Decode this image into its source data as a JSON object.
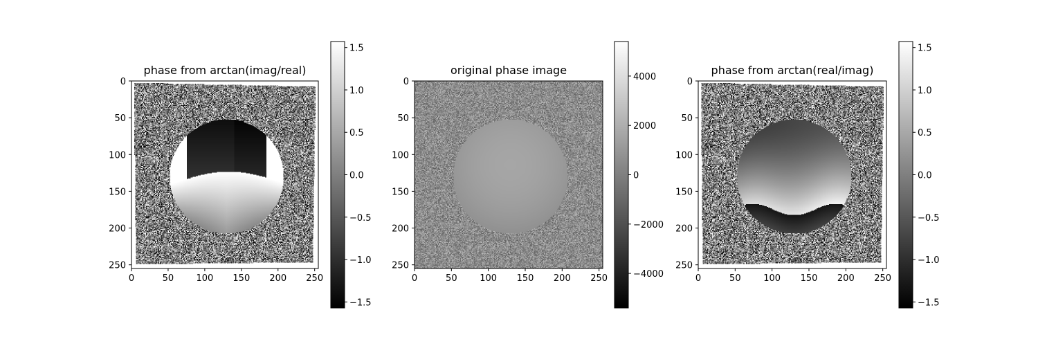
{
  "chart_data": [
    {
      "type": "heatmap",
      "title": "phase from arctan(imag/real)",
      "colormap": "gray",
      "xlim": [
        0,
        255
      ],
      "ylim": [
        255,
        0
      ],
      "x_ticks": [
        0,
        50,
        100,
        150,
        200,
        250
      ],
      "y_ticks": [
        0,
        50,
        100,
        150,
        200,
        250
      ],
      "x_tick_labels": [
        "0",
        "50",
        "100",
        "150",
        "200",
        "250"
      ],
      "y_tick_labels": [
        "0",
        "50",
        "100",
        "150",
        "200",
        "250"
      ],
      "colorbar": {
        "range": [
          -1.5708,
          1.5708
        ],
        "ticks": [
          1.5,
          1.0,
          0.5,
          0.0,
          -0.5,
          -1.0,
          -1.5
        ],
        "tick_labels": [
          "1.5",
          "1.0",
          "0.5",
          "0.0",
          "−0.5",
          "−1.0",
          "−1.5"
        ]
      },
      "content": "arctan-imag-real"
    },
    {
      "type": "heatmap",
      "title": "original phase image",
      "colormap": "gray",
      "xlim": [
        0,
        255
      ],
      "ylim": [
        255,
        0
      ],
      "x_ticks": [
        0,
        50,
        100,
        150,
        200,
        250
      ],
      "y_ticks": [
        0,
        50,
        100,
        150,
        200,
        250
      ],
      "x_tick_labels": [
        "0",
        "50",
        "100",
        "150",
        "200",
        "250"
      ],
      "y_tick_labels": [
        "0",
        "50",
        "100",
        "150",
        "200",
        "250"
      ],
      "colorbar": {
        "range": [
          -5400,
          5400
        ],
        "ticks": [
          4000,
          2000,
          0,
          -2000,
          -4000
        ],
        "tick_labels": [
          "4000",
          "2000",
          "0",
          "−2000",
          "−4000"
        ]
      },
      "content": "original"
    },
    {
      "type": "heatmap",
      "title": "phase from arctan(real/imag)",
      "colormap": "gray",
      "xlim": [
        0,
        255
      ],
      "ylim": [
        255,
        0
      ],
      "x_ticks": [
        0,
        50,
        100,
        150,
        200,
        250
      ],
      "y_ticks": [
        0,
        50,
        100,
        150,
        200,
        250
      ],
      "x_tick_labels": [
        "0",
        "50",
        "100",
        "150",
        "200",
        "250"
      ],
      "y_tick_labels": [
        "0",
        "50",
        "100",
        "150",
        "200",
        "250"
      ],
      "colorbar": {
        "range": [
          -1.5708,
          1.5708
        ],
        "ticks": [
          1.5,
          1.0,
          0.5,
          0.0,
          -0.5,
          -1.0,
          -1.5
        ],
        "tick_labels": [
          "1.5",
          "1.0",
          "0.5",
          "0.0",
          "−0.5",
          "−1.0",
          "−1.5"
        ]
      },
      "content": "arctan-real-imag"
    }
  ]
}
